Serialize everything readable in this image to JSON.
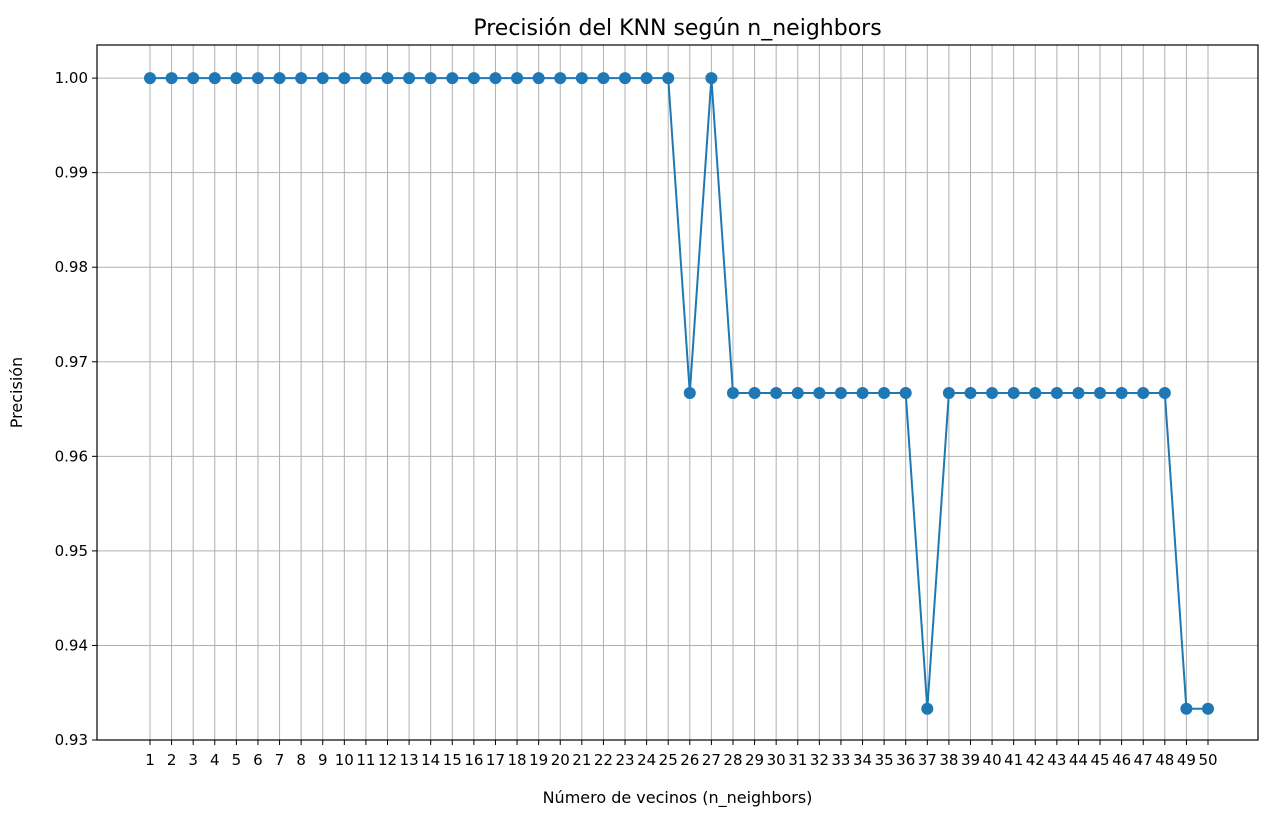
{
  "chart_data": {
    "type": "line",
    "title": "Precisión del KNN según n_neighbors",
    "xlabel": "Número de vecinos (n_neighbors)",
    "ylabel": "Precisión",
    "x": [
      1,
      2,
      3,
      4,
      5,
      6,
      7,
      8,
      9,
      10,
      11,
      12,
      13,
      14,
      15,
      16,
      17,
      18,
      19,
      20,
      21,
      22,
      23,
      24,
      25,
      26,
      27,
      28,
      29,
      30,
      31,
      32,
      33,
      34,
      35,
      36,
      37,
      38,
      39,
      40,
      41,
      42,
      43,
      44,
      45,
      46,
      47,
      48,
      49,
      50
    ],
    "series": [
      {
        "values": [
          1.0,
          1.0,
          1.0,
          1.0,
          1.0,
          1.0,
          1.0,
          1.0,
          1.0,
          1.0,
          1.0,
          1.0,
          1.0,
          1.0,
          1.0,
          1.0,
          1.0,
          1.0,
          1.0,
          1.0,
          1.0,
          1.0,
          1.0,
          1.0,
          1.0,
          0.9667,
          1.0,
          0.9667,
          0.9667,
          0.9667,
          0.9667,
          0.9667,
          0.9667,
          0.9667,
          0.9667,
          0.9667,
          0.9333,
          0.9667,
          0.9667,
          0.9667,
          0.9667,
          0.9667,
          0.9667,
          0.9667,
          0.9667,
          0.9667,
          0.9667,
          0.9667,
          0.9333,
          0.9333
        ],
        "color": "#1f77b4",
        "marker": "circle"
      }
    ],
    "ylim": [
      0.93,
      1.0035
    ],
    "yticks": [
      0.93,
      0.94,
      0.95,
      0.96,
      0.97,
      0.98,
      0.99,
      1.0
    ],
    "ytick_labels": [
      "0.93",
      "0.94",
      "0.95",
      "0.96",
      "0.97",
      "0.98",
      "0.99",
      "1.00"
    ],
    "xticks": [
      1,
      2,
      3,
      4,
      5,
      6,
      7,
      8,
      9,
      10,
      11,
      12,
      13,
      14,
      15,
      16,
      17,
      18,
      19,
      20,
      21,
      22,
      23,
      24,
      25,
      26,
      27,
      28,
      29,
      30,
      31,
      32,
      33,
      34,
      35,
      36,
      37,
      38,
      39,
      40,
      41,
      42,
      43,
      44,
      45,
      46,
      47,
      48,
      49,
      50
    ],
    "grid": true,
    "legend": "none"
  }
}
